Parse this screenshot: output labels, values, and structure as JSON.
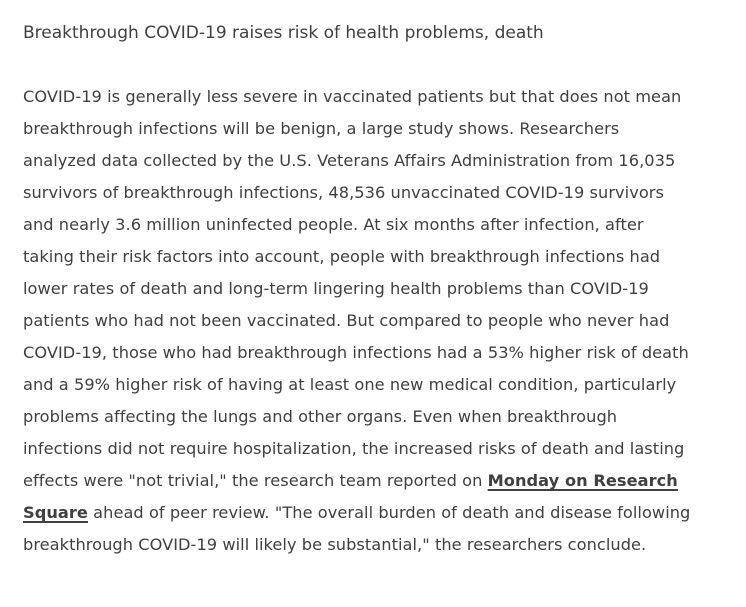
{
  "article": {
    "headline": "Breakthrough COVID-19 raises risk of health problems, death",
    "body_before_link": "COVID-19 is generally less severe in vaccinated patients but that does not mean breakthrough infections will be benign, a large study shows. Researchers analyzed data collected by the U.S. Veterans Affairs Administration from 16,035 survivors of breakthrough infections, 48,536 unvaccinated COVID-19 survivors and nearly 3.6 million uninfected people. At six months after infection, after taking their risk factors into account, people with breakthrough infections had lower rates of death and long-term lingering health problems than COVID-19 patients who had not been vaccinated. But compared to people who never had COVID-19, those who had breakthrough infections had a 53% higher risk of death and a 59% higher risk of having at least one new medical condition, particularly problems affecting the lungs and other organs. Even when breakthrough infections did not require hospitalization, the increased risks of death and lasting effects were \"not trivial,\" the research team reported on ",
    "link_text": "Monday on Research Square",
    "body_after_link": " ahead of peer review. \"The overall burden of death and disease following breakthrough COVID-19 will likely be substantial,\" the researchers conclude."
  }
}
